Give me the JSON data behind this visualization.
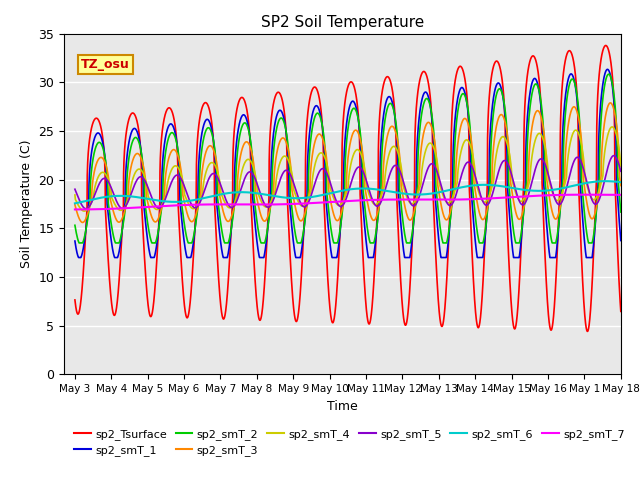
{
  "title": "SP2 Soil Temperature",
  "xlabel": "Time",
  "ylabel": "Soil Temperature (C)",
  "ylim": [
    0,
    35
  ],
  "xlim_days": [
    2.7,
    17.7
  ],
  "background_color": "#e8e8e8",
  "grid_color": "white",
  "series": [
    {
      "name": "sp2_Tsurface",
      "color": "#ff0000",
      "lw": 1.2
    },
    {
      "name": "sp2_smT_1",
      "color": "#0000dd",
      "lw": 1.2
    },
    {
      "name": "sp2_smT_2",
      "color": "#00cc00",
      "lw": 1.2
    },
    {
      "name": "sp2_smT_3",
      "color": "#ff8800",
      "lw": 1.2
    },
    {
      "name": "sp2_smT_4",
      "color": "#cccc00",
      "lw": 1.2
    },
    {
      "name": "sp2_smT_5",
      "color": "#8800cc",
      "lw": 1.2
    },
    {
      "name": "sp2_smT_6",
      "color": "#00cccc",
      "lw": 1.5
    },
    {
      "name": "sp2_smT_7",
      "color": "#ff00ff",
      "lw": 1.5
    }
  ],
  "annotation_text": "TZ_osu",
  "figsize": [
    6.4,
    4.8
  ],
  "dpi": 100
}
